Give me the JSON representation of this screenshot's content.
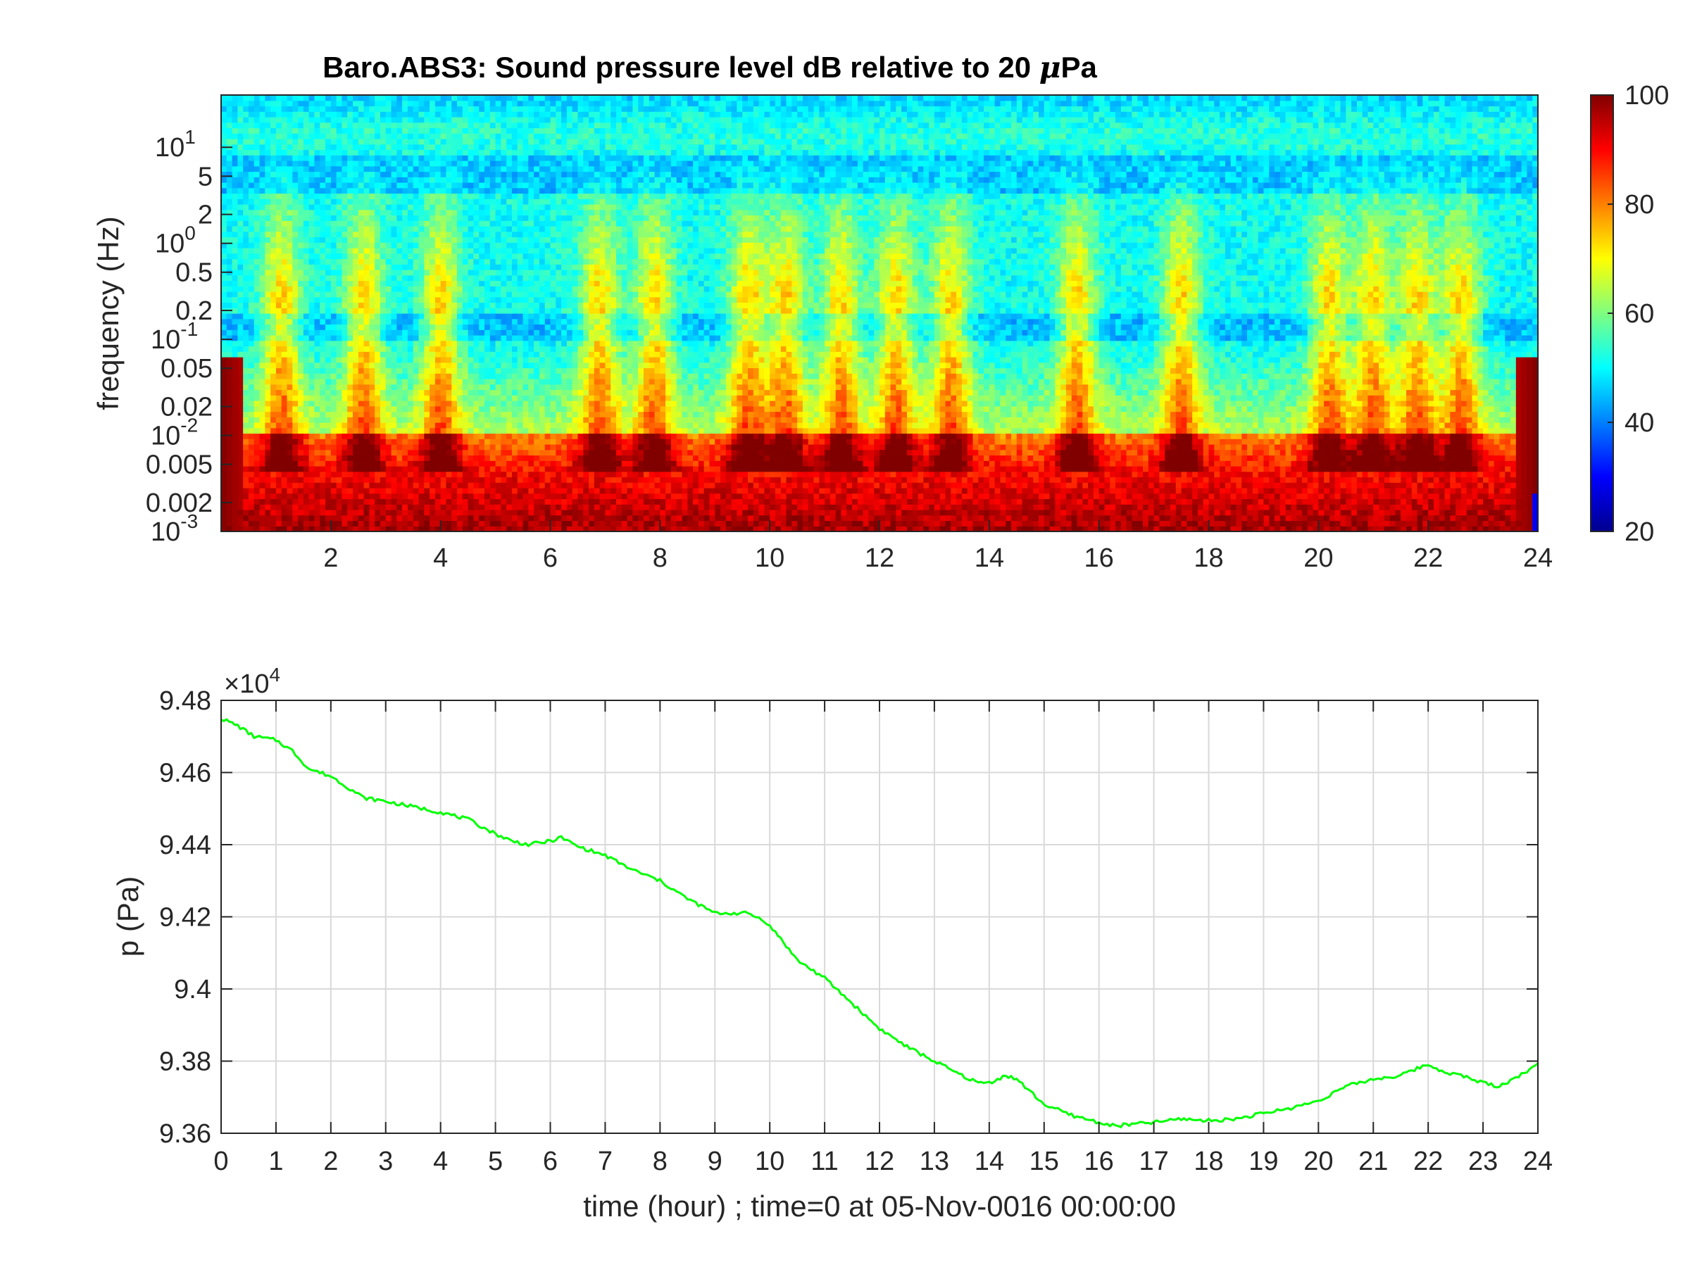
{
  "chart_data": [
    {
      "type": "heatmap",
      "title": "Baro.ABS3: Sound pressure level dB relative to 20 μPa",
      "title_parts": {
        "main": "Baro.ABS3: Sound pressure level dB relative to 20 ",
        "mu": "μ",
        "unit": "Pa"
      },
      "xlabel": "",
      "ylabel": "frequency (Hz)",
      "xlim": [
        0,
        24
      ],
      "x_ticks": [
        2,
        4,
        6,
        8,
        10,
        12,
        14,
        16,
        18,
        20,
        22,
        24
      ],
      "y_scale": "log",
      "ylim": [
        0.001,
        35
      ],
      "y_ticks": [
        {
          "value": 10,
          "base": "10",
          "exp": "1"
        },
        {
          "value": 5,
          "label": "5"
        },
        {
          "value": 2,
          "label": "2"
        },
        {
          "value": 1,
          "base": "10",
          "exp": "0"
        },
        {
          "value": 0.5,
          "label": "0.5"
        },
        {
          "value": 0.2,
          "label": "0.2"
        },
        {
          "value": 0.1,
          "base": "10",
          "exp": "-1"
        },
        {
          "value": 0.05,
          "label": "0.05"
        },
        {
          "value": 0.02,
          "label": "0.02"
        },
        {
          "value": 0.01,
          "base": "10",
          "exp": "-2"
        },
        {
          "value": 0.005,
          "label": "0.005"
        },
        {
          "value": 0.002,
          "label": "0.002"
        },
        {
          "value": 0.001,
          "base": "10",
          "exp": "-3"
        }
      ],
      "colormap": "jet",
      "colorbar": {
        "range": [
          20,
          100
        ],
        "ticks": [
          20,
          40,
          60,
          80,
          100
        ]
      },
      "description_values": {
        "high_freq_level_db": 52,
        "mid_freq_level_db": 45,
        "low_freq_level_db": 92,
        "active_time_hours": [
          1.1,
          2.6,
          4.0,
          6.9,
          7.9,
          9.6,
          10.3,
          11.3,
          12.3,
          13.3,
          15.6,
          17.5,
          20.2,
          21.0,
          21.8,
          22.6
        ]
      }
    },
    {
      "type": "line",
      "title": "",
      "xlabel": "time (hour) ; time=0 at 05-Nov-0016 00:00:00",
      "ylabel": "p (Pa)",
      "y_multiplier": {
        "base": "×10",
        "exp": "4"
      },
      "xlim": [
        0,
        24
      ],
      "ylim": [
        93600,
        94800
      ],
      "x_ticks": [
        0,
        1,
        2,
        3,
        4,
        5,
        6,
        7,
        8,
        9,
        10,
        11,
        12,
        13,
        14,
        15,
        16,
        17,
        18,
        19,
        20,
        21,
        22,
        23,
        24
      ],
      "y_ticks": [
        {
          "value": 93600,
          "label": "9.36"
        },
        {
          "value": 93800,
          "label": "9.38"
        },
        {
          "value": 94000,
          "label": "9.4"
        },
        {
          "value": 94200,
          "label": "9.42"
        },
        {
          "value": 94400,
          "label": "9.44"
        },
        {
          "value": 94600,
          "label": "9.46"
        },
        {
          "value": 94800,
          "label": "9.48"
        }
      ],
      "grid": true,
      "series": [
        {
          "color": "#00ff00",
          "x": [
            0,
            0.3,
            0.6,
            1.0,
            1.3,
            1.6,
            2.0,
            2.3,
            2.6,
            3.0,
            3.5,
            4.0,
            4.5,
            5.0,
            5.3,
            5.6,
            6.0,
            6.2,
            6.5,
            7.0,
            7.5,
            8.0,
            8.5,
            9.0,
            9.3,
            9.6,
            9.9,
            10.2,
            10.5,
            11.0,
            11.5,
            12.0,
            12.5,
            13.0,
            13.5,
            13.8,
            14.0,
            14.3,
            14.5,
            15.0,
            15.5,
            16.0,
            16.3,
            16.6,
            17.0,
            17.5,
            18.0,
            18.5,
            19.0,
            19.5,
            20.0,
            20.5,
            21.0,
            21.5,
            21.8,
            22.0,
            22.3,
            22.6,
            23.0,
            23.3,
            23.6,
            24.0
          ],
          "y": [
            94750,
            94730,
            94700,
            94690,
            94660,
            94610,
            94590,
            94560,
            94530,
            94520,
            94505,
            94490,
            94470,
            94430,
            94410,
            94400,
            94410,
            94420,
            94395,
            94370,
            94330,
            94300,
            94250,
            94210,
            94210,
            94210,
            94190,
            94140,
            94080,
            94030,
            93960,
            93890,
            93840,
            93800,
            93760,
            93740,
            93740,
            93760,
            93750,
            93680,
            93650,
            93630,
            93620,
            93625,
            93630,
            93640,
            93635,
            93640,
            93655,
            93670,
            93690,
            93730,
            93750,
            93760,
            93780,
            93790,
            93770,
            93760,
            93740,
            93730,
            93755,
            93790
          ]
        }
      ]
    }
  ]
}
